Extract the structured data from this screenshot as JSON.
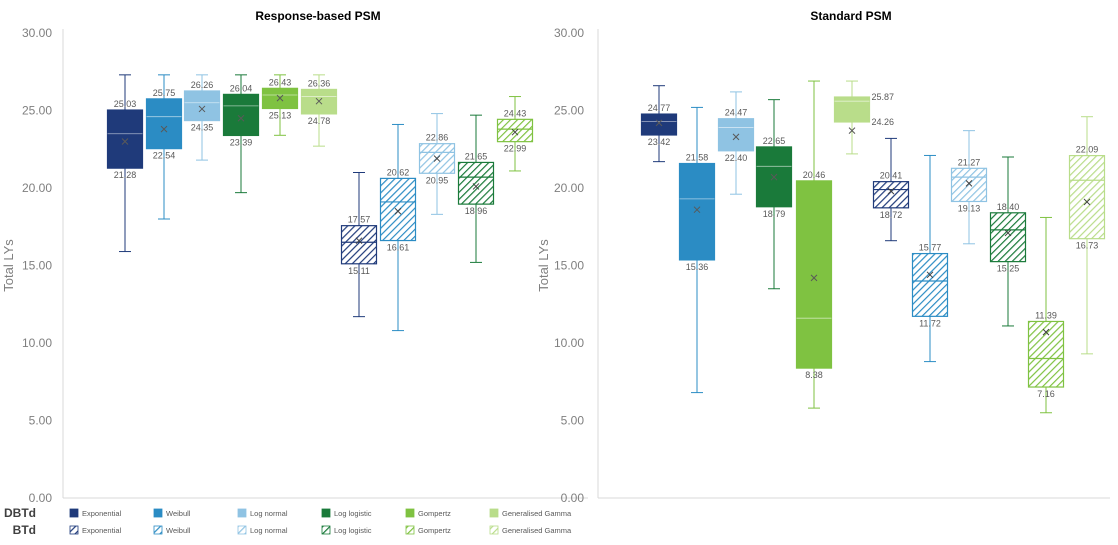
{
  "chart_data": [
    {
      "type": "boxplot",
      "title": "Response-based PSM",
      "ylabel": "Total LYs",
      "ylim": [
        0,
        30
      ],
      "yticks": [
        "0.00",
        "5.00",
        "10.00",
        "15.00",
        "20.00",
        "25.00",
        "30.00"
      ],
      "boxes": [
        {
          "group": "DBTd",
          "model": "Exponential",
          "min": 15.9,
          "q1": 21.28,
          "median": 23.5,
          "q3": 25.03,
          "max": 27.3,
          "mean": 23.0,
          "upper_label": "25.03",
          "lower_label": "21.28"
        },
        {
          "group": "DBTd",
          "model": "Weibull",
          "min": 18.0,
          "q1": 22.54,
          "median": 24.6,
          "q3": 25.75,
          "max": 27.3,
          "mean": 23.8,
          "upper_label": "25.75",
          "lower_label": "22.54"
        },
        {
          "group": "DBTd",
          "model": "Log normal",
          "min": 21.8,
          "q1": 24.35,
          "median": 25.5,
          "q3": 26.26,
          "max": 27.3,
          "mean": 25.1,
          "upper_label": "26.26",
          "lower_label": "24.35"
        },
        {
          "group": "DBTd",
          "model": "Log logistic",
          "min": 19.7,
          "q1": 23.39,
          "median": 25.3,
          "q3": 26.04,
          "max": 27.3,
          "mean": 24.5,
          "upper_label": "26.04",
          "lower_label": "23.39"
        },
        {
          "group": "DBTd",
          "model": "Gompertz",
          "min": 23.4,
          "q1": 25.13,
          "median": 26.0,
          "q3": 26.43,
          "max": 27.3,
          "mean": 25.8,
          "upper_label": "26.43",
          "lower_label": "25.13"
        },
        {
          "group": "DBTd",
          "model": "Generalised Gamma",
          "min": 22.7,
          "q1": 24.78,
          "median": 25.9,
          "q3": 26.36,
          "max": 27.3,
          "mean": 25.6,
          "upper_label": "26.36",
          "lower_label": "24.78"
        },
        {
          "group": "BTd",
          "model": "Exponential",
          "min": 11.7,
          "q1": 15.11,
          "median": 16.5,
          "q3": 17.57,
          "max": 21.0,
          "mean": 16.6,
          "upper_label": "17.57",
          "lower_label": "15.11"
        },
        {
          "group": "BTd",
          "model": "Weibull",
          "min": 10.8,
          "q1": 16.61,
          "median": 19.1,
          "q3": 20.62,
          "max": 24.1,
          "mean": 18.5,
          "upper_label": "20.62",
          "lower_label": "16.61"
        },
        {
          "group": "BTd",
          "model": "Log normal",
          "min": 18.3,
          "q1": 20.95,
          "median": 22.3,
          "q3": 22.86,
          "max": 24.8,
          "mean": 21.9,
          "upper_label": "22.86",
          "lower_label": "20.95"
        },
        {
          "group": "BTd",
          "model": "Log logistic",
          "min": 15.2,
          "q1": 18.96,
          "median": 20.7,
          "q3": 21.65,
          "max": 24.7,
          "mean": 20.1,
          "upper_label": "21.65",
          "lower_label": "18.96"
        },
        {
          "group": "BTd",
          "model": "Gompertz",
          "min": 21.1,
          "q1": 22.99,
          "median": 23.8,
          "q3": 24.43,
          "max": 25.9,
          "mean": 23.6,
          "upper_label": "24.43",
          "lower_label": "22.99"
        }
      ]
    },
    {
      "type": "boxplot",
      "title": "Standard PSM",
      "ylabel": "Total LYs",
      "ylim": [
        0,
        30
      ],
      "yticks": [
        "0.00",
        "5.00",
        "10.00",
        "15.00",
        "20.00",
        "25.00",
        "30.00"
      ],
      "boxes": [
        {
          "group": "DBTd",
          "model": "Exponential",
          "min": 21.7,
          "q1": 23.42,
          "median": 24.3,
          "q3": 24.77,
          "max": 26.6,
          "mean": 24.2,
          "upper_label": "24.77",
          "lower_label": "23.42"
        },
        {
          "group": "DBTd",
          "model": "Weibull",
          "min": 6.8,
          "q1": 15.36,
          "median": 19.3,
          "q3": 21.58,
          "max": 25.2,
          "mean": 18.6,
          "upper_label": "21.58",
          "lower_label": "15.36"
        },
        {
          "group": "DBTd",
          "model": "Log normal",
          "min": 19.6,
          "q1": 22.4,
          "median": 23.9,
          "q3": 24.47,
          "max": 26.2,
          "mean": 23.3,
          "upper_label": "24.47",
          "lower_label": "22.40"
        },
        {
          "group": "DBTd",
          "model": "Log logistic",
          "min": 13.5,
          "q1": 18.79,
          "median": 21.4,
          "q3": 22.65,
          "max": 25.7,
          "mean": 20.7,
          "upper_label": "22.65",
          "lower_label": "18.79"
        },
        {
          "group": "DBTd",
          "model": "Gompertz",
          "min": 5.8,
          "q1": 8.38,
          "median": 11.6,
          "q3": 20.46,
          "max": 26.9,
          "mean": 14.2,
          "upper_label": "20.46",
          "lower_label": "8.38"
        },
        {
          "group": "DBTd",
          "model": "Generalised Gamma",
          "min": 22.2,
          "q1": 24.26,
          "median": 25.6,
          "q3": 25.87,
          "max": 26.9,
          "mean": 23.7,
          "upper_label": "25.87",
          "lower_label": "24.26"
        },
        {
          "group": "BTd",
          "model": "Exponential",
          "min": 16.6,
          "q1": 18.72,
          "median": 19.9,
          "q3": 20.41,
          "max": 23.2,
          "mean": 19.8,
          "upper_label": "20.41",
          "lower_label": "18.72"
        },
        {
          "group": "BTd",
          "model": "Weibull",
          "min": 8.8,
          "q1": 11.72,
          "median": 14.0,
          "q3": 15.77,
          "max": 22.1,
          "mean": 14.4,
          "upper_label": "15.77",
          "lower_label": "11.72"
        },
        {
          "group": "BTd",
          "model": "Log normal",
          "min": 16.4,
          "q1": 19.13,
          "median": 20.7,
          "q3": 21.27,
          "max": 23.7,
          "mean": 20.3,
          "upper_label": "21.27",
          "lower_label": "19.13"
        },
        {
          "group": "BTd",
          "model": "Log logistic",
          "min": 11.1,
          "q1": 15.25,
          "median": 17.3,
          "q3": 18.4,
          "max": 22.0,
          "mean": 17.1,
          "upper_label": "18.40",
          "lower_label": "15.25"
        },
        {
          "group": "BTd",
          "model": "Gompertz",
          "min": 5.5,
          "q1": 7.16,
          "median": 9.0,
          "q3": 11.39,
          "max": 18.1,
          "mean": 10.7,
          "upper_label": "11.39",
          "lower_label": "7.16"
        },
        {
          "group": "BTd",
          "model": "Generalised Gamma",
          "min": 9.3,
          "q1": 16.73,
          "median": 20.5,
          "q3": 22.09,
          "max": 24.6,
          "mean": 19.1,
          "upper_label": "22.09",
          "lower_label": "16.73"
        }
      ]
    }
  ],
  "legend": {
    "groups": [
      {
        "label": "DBTd",
        "hatched": false
      },
      {
        "label": "BTd",
        "hatched": true
      }
    ],
    "models": [
      "Exponential",
      "Weibull",
      "Log normal",
      "Log logistic",
      "Gompertz",
      "Generalised Gamma"
    ]
  },
  "colors": {
    "Exponential": "#1f3a7a",
    "Weibull": "#2b8cc4",
    "Log normal": "#8fc3e3",
    "Log logistic": "#1a7a3a",
    "Gompertz": "#7fc241",
    "Generalised Gamma": "#b9dd8a",
    "axis": "#d9d9d9"
  }
}
